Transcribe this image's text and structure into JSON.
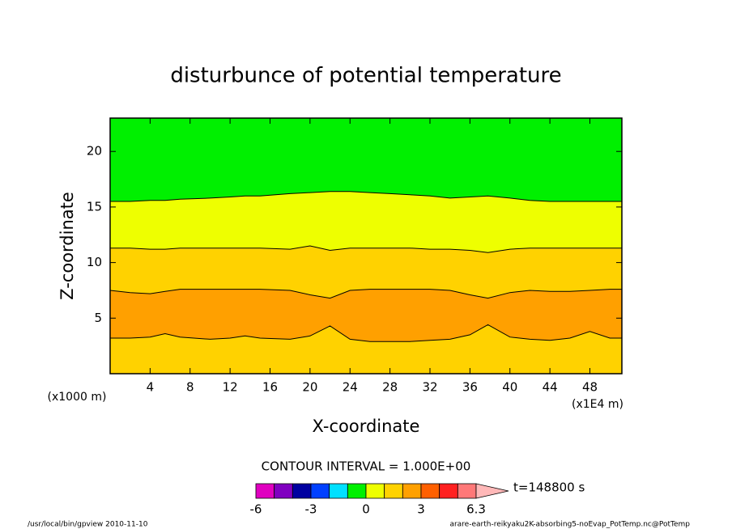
{
  "chart_data": {
    "type": "contour",
    "title": "disturbunce of potential temperature",
    "xlabel": "X-coordinate",
    "ylabel": "Z-coordinate",
    "xunit": "(x1E4 m)",
    "yunit": "(x1000 m)",
    "xlim": [
      0,
      51.2
    ],
    "ylim": [
      0,
      23
    ],
    "xticks": [
      4,
      8,
      12,
      16,
      20,
      24,
      28,
      32,
      36,
      40,
      44,
      48
    ],
    "yticks": [
      5,
      10,
      15,
      20
    ],
    "x": [
      0,
      2,
      4,
      5.5,
      7,
      10,
      12,
      13.5,
      15,
      18,
      20,
      22,
      24,
      26,
      28,
      30,
      32,
      34,
      36,
      37.8,
      40,
      42,
      44,
      46,
      48,
      50,
      51.2
    ],
    "contours": [
      {
        "level": 2,
        "z": [
          3.2,
          3.2,
          3.3,
          3.6,
          3.3,
          3.1,
          3.2,
          3.4,
          3.2,
          3.1,
          3.4,
          4.3,
          3.1,
          2.9,
          2.9,
          2.9,
          3.0,
          3.1,
          3.5,
          4.4,
          3.3,
          3.1,
          3.0,
          3.2,
          3.8,
          3.2,
          3.2
        ]
      },
      {
        "level": 2,
        "z": [
          7.5,
          7.3,
          7.2,
          7.4,
          7.6,
          7.6,
          7.6,
          7.6,
          7.6,
          7.5,
          7.1,
          6.8,
          7.5,
          7.6,
          7.6,
          7.6,
          7.6,
          7.5,
          7.1,
          6.8,
          7.3,
          7.5,
          7.4,
          7.4,
          7.5,
          7.6,
          7.6
        ]
      },
      {
        "level": 1,
        "z": [
          11.3,
          11.3,
          11.2,
          11.2,
          11.3,
          11.3,
          11.3,
          11.3,
          11.3,
          11.2,
          11.5,
          11.1,
          11.3,
          11.3,
          11.3,
          11.3,
          11.2,
          11.2,
          11.1,
          10.9,
          11.2,
          11.3,
          11.3,
          11.3,
          11.3,
          11.3,
          11.3
        ]
      },
      {
        "level": 0,
        "z": [
          15.5,
          15.5,
          15.6,
          15.6,
          15.7,
          15.8,
          15.9,
          16.0,
          16.0,
          16.2,
          16.3,
          16.4,
          16.4,
          16.3,
          16.2,
          16.1,
          16.0,
          15.8,
          15.9,
          16.0,
          15.8,
          15.6,
          15.5,
          15.5,
          15.5,
          15.5,
          15.5
        ]
      }
    ],
    "fill_colors": [
      "#ffd200",
      "#ffa000",
      "#ffd200",
      "#eeff00",
      "#00f000"
    ],
    "contour_interval": "CONTOUR INTERVAL = 1.000E+00",
    "colorbar": {
      "levels": [
        -6,
        -5,
        -4,
        -3,
        -2,
        -1,
        0,
        1,
        2,
        3,
        4,
        5,
        6.3
      ],
      "colors": [
        "#e000c0",
        "#8000c0",
        "#0000a0",
        "#0040ff",
        "#00e0ff",
        "#00f000",
        "#eeff00",
        "#ffd200",
        "#ffa000",
        "#ff6000",
        "#ff2020",
        "#ff7878"
      ],
      "over_color": "#ffb8b8",
      "ticks": [
        -6,
        -3,
        0,
        3,
        6.3
      ]
    },
    "time_label": "t=148800 s",
    "footer_left": "/usr/local/bin/gpview  2010-11-10",
    "footer_right": "arare-earth-reikyaku2K-absorbing5-noEvap_PotTemp.nc@PotTemp"
  }
}
